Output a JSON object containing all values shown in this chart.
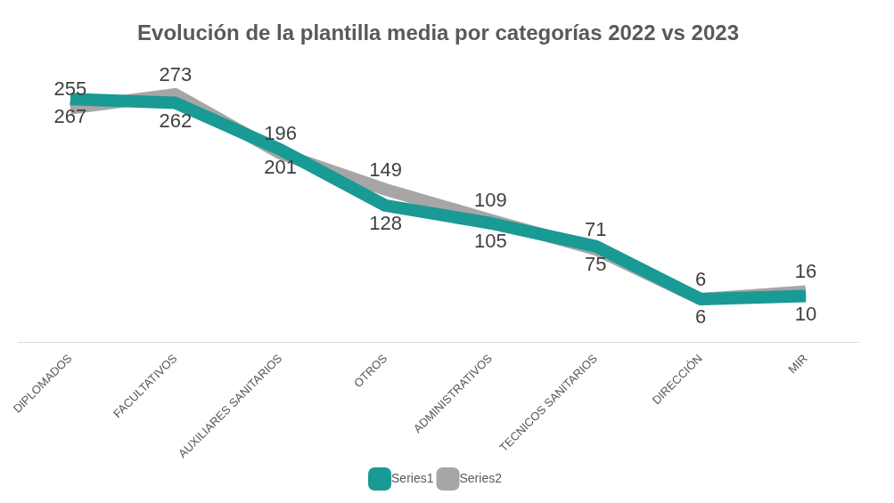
{
  "chart_data": {
    "type": "line",
    "title": "Evolución de la plantilla media por categorías 2022 vs 2023",
    "categories": [
      "DIPLOMADOS",
      "FACULTATIVOS",
      "AUXILIARES SANITARIOS",
      "OTROS",
      "ADMINISTRATIVOS",
      "TECNICOS SANITARIOS",
      "DIRECCIÓN",
      "MIR"
    ],
    "series": [
      {
        "name": "Series1",
        "color": "#1a9a94",
        "values": [
          267,
          262,
          201,
          128,
          105,
          75,
          6,
          10
        ]
      },
      {
        "name": "Series2",
        "color": "#a6a6a6",
        "values": [
          255,
          273,
          196,
          149,
          109,
          71,
          6,
          16
        ]
      }
    ],
    "data_labels": true,
    "legend": "bottom",
    "grid": false
  }
}
